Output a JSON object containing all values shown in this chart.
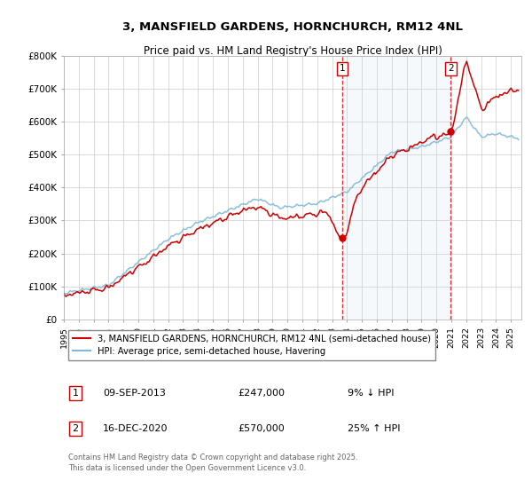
{
  "title_line1": "3, MANSFIELD GARDENS, HORNCHURCH, RM12 4NL",
  "title_line2": "Price paid vs. HM Land Registry's House Price Index (HPI)",
  "background_color": "#ffffff",
  "plot_bg_color": "#ffffff",
  "grid_color": "#cccccc",
  "hpi_line_color": "#7fb8d8",
  "price_line_color": "#cc0000",
  "shade_color": "#ddeeff",
  "vline_color": "#cc0000",
  "marker_color": "#cc0000",
  "ylim": [
    0,
    800000
  ],
  "yticks": [
    0,
    100000,
    200000,
    300000,
    400000,
    500000,
    600000,
    700000,
    800000
  ],
  "ytick_labels": [
    "£0",
    "£100K",
    "£200K",
    "£300K",
    "£400K",
    "£500K",
    "£600K",
    "£700K",
    "£800K"
  ],
  "xtick_years": [
    1995,
    1996,
    1997,
    1998,
    1999,
    2000,
    2001,
    2002,
    2003,
    2004,
    2005,
    2006,
    2007,
    2008,
    2009,
    2010,
    2011,
    2012,
    2013,
    2014,
    2015,
    2016,
    2017,
    2018,
    2019,
    2020,
    2021,
    2022,
    2023,
    2024,
    2025
  ],
  "legend_label1": "3, MANSFIELD GARDENS, HORNCHURCH, RM12 4NL (semi-detached house)",
  "legend_label2": "HPI: Average price, semi-detached house, Havering",
  "annotation1_label": "1",
  "annotation1_date": "09-SEP-2013",
  "annotation1_price": "£247,000",
  "annotation1_hpi": "9% ↓ HPI",
  "annotation1_year": 2013.69,
  "annotation1_value": 247000,
  "annotation2_label": "2",
  "annotation2_date": "16-DEC-2020",
  "annotation2_price": "£570,000",
  "annotation2_hpi": "25% ↑ HPI",
  "annotation2_year": 2020.96,
  "annotation2_value": 570000,
  "footnote_line1": "Contains HM Land Registry data © Crown copyright and database right 2025.",
  "footnote_line2": "This data is licensed under the Open Government Licence v3.0."
}
